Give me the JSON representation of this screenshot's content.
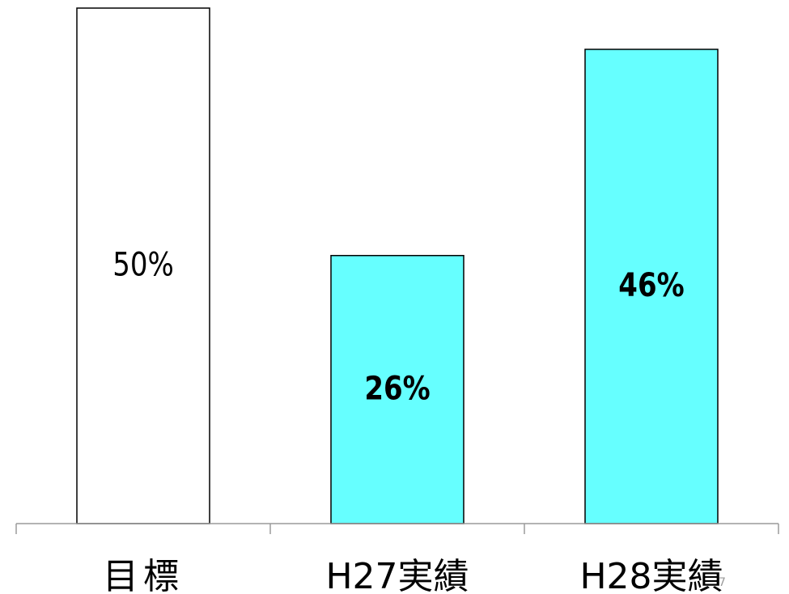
{
  "chart_data": {
    "type": "bar",
    "categories": [
      "目標",
      "H27実績",
      "H28実績"
    ],
    "values": [
      50,
      26,
      46
    ],
    "data_labels": [
      "50%",
      "26%",
      "46%"
    ],
    "ylim": [
      0,
      50
    ],
    "grid": false,
    "legend": "none",
    "colors": [
      "#ffffff",
      "#66ffff",
      "#66ffff"
    ],
    "label_bold": [
      false,
      true,
      true
    ]
  },
  "page_number": "7"
}
